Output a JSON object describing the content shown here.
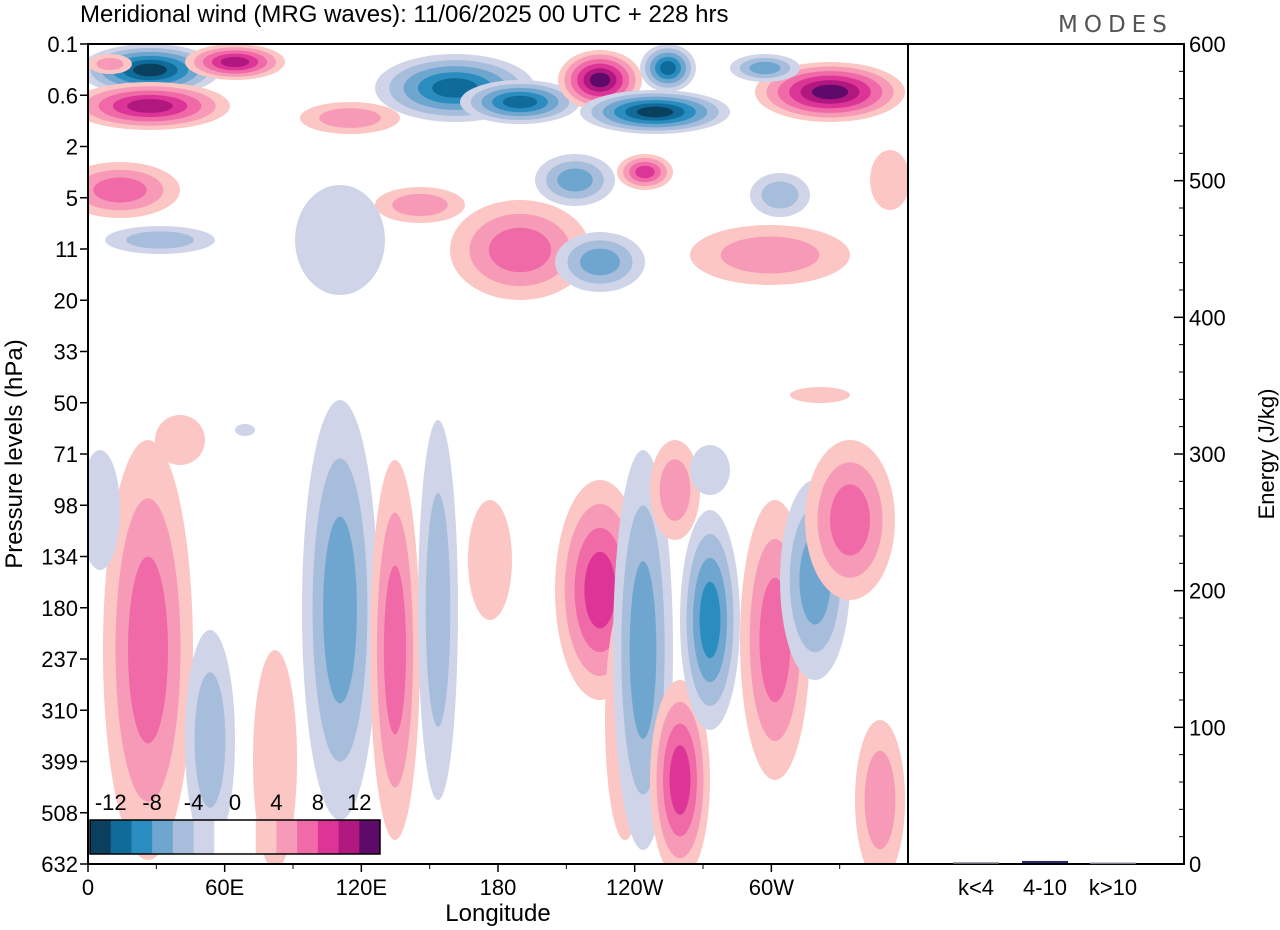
{
  "header": {
    "title": "Meridional wind (MRG waves):  11/06/2025  00 UTC  + 228 hrs",
    "logo": "MODES"
  },
  "chart_data": [
    {
      "type": "heatmap",
      "title": "Meridional wind (MRG waves):  11/06/2025  00 UTC  + 228 hrs",
      "xlabel": "Longitude",
      "ylabel": "Pressure levels (hPa)",
      "x_ticks": [
        "0",
        "60E",
        "120E",
        "180",
        "120W",
        "60W"
      ],
      "y_ticks": [
        "0.1",
        "0.6",
        "2",
        "5",
        "11",
        "20",
        "33",
        "50",
        "71",
        "98",
        "134",
        "180",
        "237",
        "310",
        "399",
        "508",
        "632"
      ],
      "colorbar": {
        "labels": [
          "-12",
          "-8",
          "-4",
          "0",
          "4",
          "8",
          "12"
        ],
        "colors": [
          "#0b3f5e",
          "#0f6b9a",
          "#2b8cc0",
          "#6ea6cf",
          "#a6bddb",
          "#d0d4e8",
          "#ffffff",
          "#ffffff",
          "#fbc6c3",
          "#f79ab8",
          "#ef6aa6",
          "#dd3497",
          "#b1187f",
          "#5e0a6b"
        ]
      }
    },
    {
      "type": "bar",
      "categories": [
        "k<4",
        "4-10",
        "k>10"
      ],
      "values": [
        0.5,
        1.5,
        0.3
      ],
      "ylabel": "Energy (J/kg)",
      "ylim": [
        0,
        600
      ],
      "y_ticks": [
        "0",
        "100",
        "200",
        "300",
        "400",
        "500",
        "600"
      ],
      "colors": [
        "#7a7a8a",
        "#2a2a6a",
        "#7a7a8a"
      ]
    }
  ]
}
